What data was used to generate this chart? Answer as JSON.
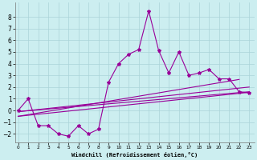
{
  "xlabel": "Windchill (Refroidissement éolien,°C)",
  "background_color": "#cceef0",
  "line_color": "#990099",
  "grid_color": "#aad4d8",
  "x_ticks": [
    0,
    1,
    2,
    3,
    4,
    5,
    6,
    7,
    8,
    9,
    10,
    11,
    12,
    13,
    14,
    15,
    16,
    17,
    18,
    19,
    20,
    21,
    22,
    23
  ],
  "y_ticks": [
    -2,
    -1,
    0,
    1,
    2,
    3,
    4,
    5,
    6,
    7,
    8
  ],
  "xlim": [
    -0.3,
    23.5
  ],
  "ylim": [
    -2.7,
    9.2
  ],
  "main_series_x": [
    0,
    1,
    2,
    3,
    4,
    5,
    6,
    7,
    8,
    9,
    10,
    11,
    12,
    13,
    14,
    15,
    16,
    17,
    18,
    19,
    20,
    21,
    22,
    23
  ],
  "main_series_y": [
    0,
    1.0,
    -1.3,
    -1.3,
    -2.0,
    -2.2,
    -1.3,
    -2.0,
    -1.6,
    2.4,
    4.0,
    4.8,
    5.2,
    8.5,
    5.1,
    3.2,
    5.0,
    3.0,
    3.2,
    3.5,
    2.7,
    2.7,
    1.6,
    1.5
  ],
  "straight_lines": [
    {
      "x": [
        0,
        23
      ],
      "y": [
        -0.1,
        2.0
      ]
    },
    {
      "x": [
        0,
        23
      ],
      "y": [
        -0.1,
        1.6
      ]
    },
    {
      "x": [
        0,
        23
      ],
      "y": [
        -0.5,
        1.55
      ]
    },
    {
      "x": [
        0,
        22
      ],
      "y": [
        -0.5,
        2.65
      ]
    }
  ]
}
